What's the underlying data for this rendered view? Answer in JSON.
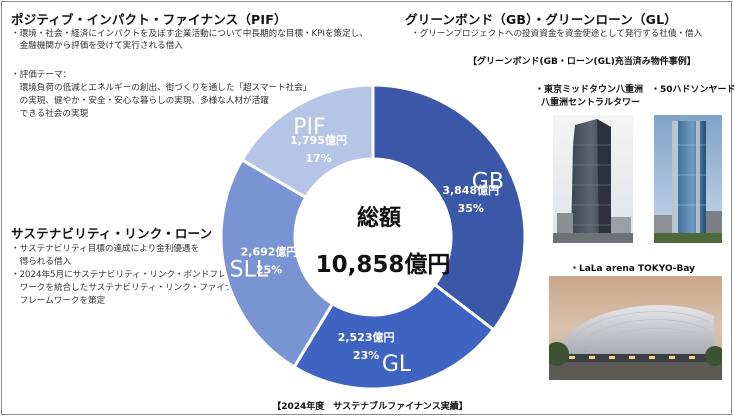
{
  "pif": {
    "title": "ポジティブ・インパクト・ファイナンス（PIF）",
    "lines": [
      "・環境・社会・経済にインパクトを及ぼす企業活動について中長期的な目標・KPIを策定し、",
      "　金融機関から評価を受けて実行される借入",
      "・評価テーマ：",
      "　環境負荷の低減とエネルギーの創出、街づくりを通した「超スマート社会」",
      "　の実現、健やか・安全・安心な暮らしの実現、多様な人材が活躍",
      "　できる社会の実現"
    ]
  },
  "gb": {
    "title": "グリーンボンド（GB）・グリーンローン（GL）",
    "lines": [
      "・グリーンプロジェクトへの投資資金を資金使途として発行する社債・借入"
    ],
    "examples_header": "【グリーンボンド(GB・ローン(GL)充当済み物件事例】",
    "examples": [
      {
        "label_lines": [
          "・東京ミッドタウン八重洲",
          "八重洲セントラルタワー"
        ]
      },
      {
        "label_lines": [
          "・50ハドソンヤード"
        ]
      },
      {
        "label_lines": [
          "・LaLa arena TOKYO-Bay"
        ]
      }
    ]
  },
  "sll": {
    "title": "サステナビリティ・リンク・ローン（SLL）",
    "lines": [
      "・サステナビリティ目標の達成により金利優遇を",
      "　得られる借入",
      "・2024年5月にサステナビリティ・リンク・ボンドフレーム",
      "　ワークを統合したサステナビリティ・リンク・ファイナンス・",
      "　フレームワークを策定"
    ]
  },
  "footer": "【2024年度　サステナブルファイナンス実績】",
  "chart_data": {
    "type": "pie",
    "donut": true,
    "center_label": "総額",
    "center_value": "10,858億円",
    "slices": [
      {
        "name": "GB",
        "value_label": "3,848億円",
        "percent_label": "35%",
        "value": 3848,
        "color": "#3b58a8"
      },
      {
        "name": "GL",
        "value_label": "2,523億円",
        "percent_label": "23%",
        "value": 2523,
        "color": "#3f63c0"
      },
      {
        "name": "SLL",
        "value_label": "2,692億円",
        "percent_label": "25%",
        "value": 2692,
        "color": "#7a93d2"
      },
      {
        "name": "PIF",
        "value_label": "1,795億円",
        "percent_label": "17%",
        "value": 1795,
        "color": "#b6c4e6"
      }
    ]
  }
}
